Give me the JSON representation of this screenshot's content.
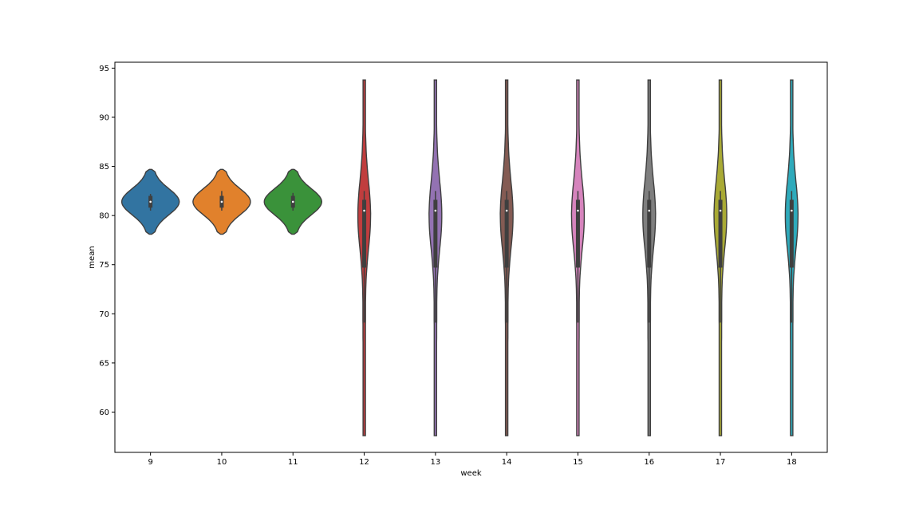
{
  "chart_data": {
    "type": "violin",
    "xlabel": "week",
    "ylabel": "mean",
    "categories": [
      "9",
      "10",
      "11",
      "12",
      "13",
      "14",
      "15",
      "16",
      "17",
      "18"
    ],
    "ylim": [
      55.9,
      95.6
    ],
    "yticks": [
      60,
      65,
      70,
      75,
      80,
      85,
      90,
      95
    ],
    "grid": false,
    "legend": "none",
    "colors": [
      "#3274a1",
      "#e1812c",
      "#3a923a",
      "#c03d3e",
      "#9372b2",
      "#845b53",
      "#d684bd",
      "#7f7f7f",
      "#a9aa35",
      "#2eaabb"
    ],
    "line_color": "#3f3f3f",
    "violins": [
      {
        "week": "9",
        "min": 78.1,
        "max": 84.7,
        "q1": 80.8,
        "median": 81.4,
        "q3": 82.0,
        "whisker_low": 80.5,
        "whisker_high": 82.2,
        "shape": "narrow-range"
      },
      {
        "week": "10",
        "min": 78.1,
        "max": 84.7,
        "q1": 80.8,
        "median": 81.4,
        "q3": 82.0,
        "whisker_low": 80.5,
        "whisker_high": 82.5,
        "shape": "narrow-range"
      },
      {
        "week": "11",
        "min": 78.1,
        "max": 84.7,
        "q1": 80.8,
        "median": 81.4,
        "q3": 82.0,
        "whisker_low": 80.5,
        "whisker_high": 82.3,
        "shape": "narrow-range"
      },
      {
        "week": "12",
        "min": 57.6,
        "max": 93.8,
        "q1": 74.7,
        "median": 80.5,
        "q3": 81.6,
        "whisker_low": 69.1,
        "whisker_high": 82.5,
        "shape": "wide-range"
      },
      {
        "week": "13",
        "min": 57.6,
        "max": 93.8,
        "q1": 74.7,
        "median": 80.5,
        "q3": 81.6,
        "whisker_low": 69.1,
        "whisker_high": 82.5,
        "shape": "wide-range"
      },
      {
        "week": "14",
        "min": 57.6,
        "max": 93.8,
        "q1": 74.7,
        "median": 80.5,
        "q3": 81.6,
        "whisker_low": 69.1,
        "whisker_high": 82.5,
        "shape": "wide-range"
      },
      {
        "week": "15",
        "min": 57.6,
        "max": 93.8,
        "q1": 74.7,
        "median": 80.5,
        "q3": 81.6,
        "whisker_low": 69.1,
        "whisker_high": 82.5,
        "shape": "wide-range"
      },
      {
        "week": "16",
        "min": 57.6,
        "max": 93.8,
        "q1": 74.7,
        "median": 80.5,
        "q3": 81.6,
        "whisker_low": 69.1,
        "whisker_high": 82.5,
        "shape": "wide-range"
      },
      {
        "week": "17",
        "min": 57.6,
        "max": 93.8,
        "q1": 74.7,
        "median": 80.5,
        "q3": 81.6,
        "whisker_low": 69.1,
        "whisker_high": 82.5,
        "shape": "wide-range"
      },
      {
        "week": "18",
        "min": 57.6,
        "max": 93.8,
        "q1": 74.7,
        "median": 80.5,
        "q3": 81.6,
        "whisker_low": 69.1,
        "whisker_high": 82.5,
        "shape": "wide-range"
      }
    ]
  }
}
